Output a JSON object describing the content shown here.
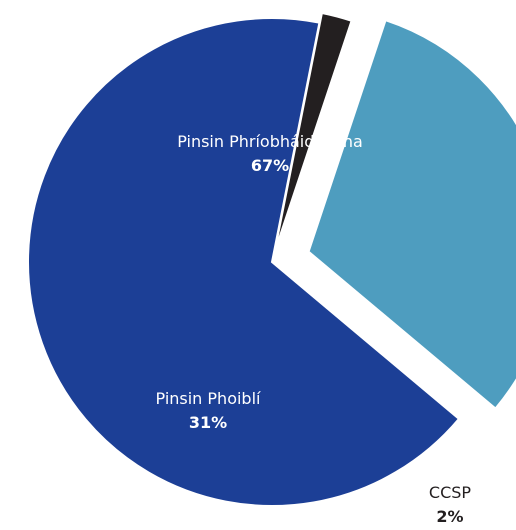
{
  "chart_data": {
    "type": "pie",
    "slices": [
      {
        "label": "Pinsin Phríobháideacha",
        "value": 67,
        "display": "67%",
        "color": "#1c3f96",
        "label_color": "#ffffff"
      },
      {
        "label": "CCSP",
        "value": 2,
        "display": "2%",
        "color": "#231f20",
        "label_color": "#231f20"
      },
      {
        "label": "Pinsin Phoiblí",
        "value": 31,
        "display": "31%",
        "color": "#4e9dbf",
        "label_color": "#ffffff"
      }
    ],
    "exploded": true,
    "legend": "none"
  }
}
